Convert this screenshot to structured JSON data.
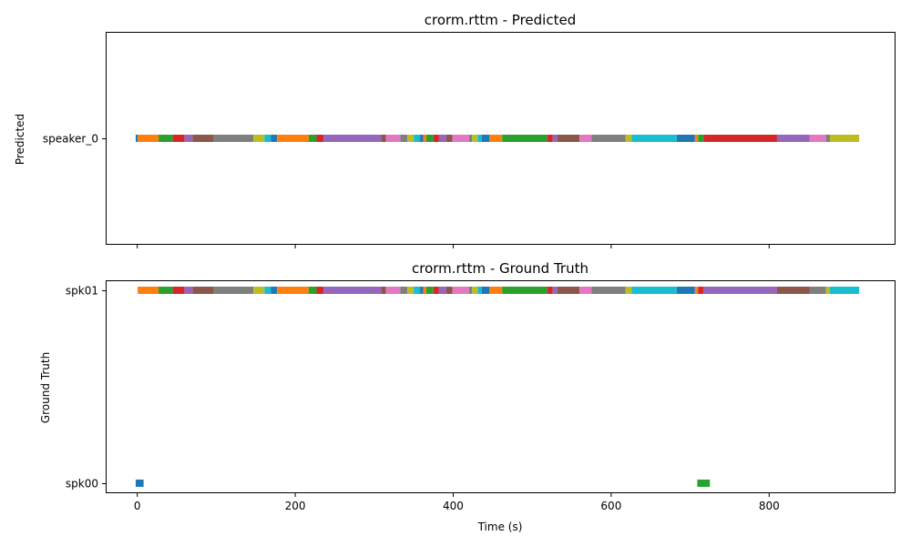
{
  "chart_data": [
    {
      "type": "timeline",
      "title": "crorm.rttm - Predicted",
      "xlabel": "",
      "ylabel": "Predicted",
      "xlim": [
        -40,
        960
      ],
      "xticks": [
        0,
        200,
        400,
        600,
        800
      ],
      "xtick_labels_visible": false,
      "speakers": [
        "speaker_0"
      ],
      "segments": [
        {
          "speaker": "speaker_0",
          "start": -2,
          "end": 0.5,
          "color": "#1f77b4"
        },
        {
          "speaker": "speaker_0",
          "start": 0.5,
          "end": 27,
          "color": "#ff7f0e"
        },
        {
          "speaker": "speaker_0",
          "start": 27,
          "end": 45,
          "color": "#2ca02c"
        },
        {
          "speaker": "speaker_0",
          "start": 45,
          "end": 60,
          "color": "#d62728"
        },
        {
          "speaker": "speaker_0",
          "start": 60,
          "end": 70,
          "color": "#9467bd"
        },
        {
          "speaker": "speaker_0",
          "start": 70,
          "end": 97,
          "color": "#8c564b"
        },
        {
          "speaker": "speaker_0",
          "start": 97,
          "end": 147,
          "color": "#7f7f7f"
        },
        {
          "speaker": "speaker_0",
          "start": 147,
          "end": 161,
          "color": "#bcbd22"
        },
        {
          "speaker": "speaker_0",
          "start": 161,
          "end": 169,
          "color": "#17becf"
        },
        {
          "speaker": "speaker_0",
          "start": 169,
          "end": 177,
          "color": "#1f77b4"
        },
        {
          "speaker": "speaker_0",
          "start": 177,
          "end": 217,
          "color": "#ff7f0e"
        },
        {
          "speaker": "speaker_0",
          "start": 217,
          "end": 227,
          "color": "#2ca02c"
        },
        {
          "speaker": "speaker_0",
          "start": 227,
          "end": 236,
          "color": "#d62728"
        },
        {
          "speaker": "speaker_0",
          "start": 236,
          "end": 309,
          "color": "#9467bd"
        },
        {
          "speaker": "speaker_0",
          "start": 309,
          "end": 315,
          "color": "#8c564b"
        },
        {
          "speaker": "speaker_0",
          "start": 315,
          "end": 333,
          "color": "#e377c2"
        },
        {
          "speaker": "speaker_0",
          "start": 333,
          "end": 342,
          "color": "#7f7f7f"
        },
        {
          "speaker": "speaker_0",
          "start": 342,
          "end": 350,
          "color": "#bcbd22"
        },
        {
          "speaker": "speaker_0",
          "start": 350,
          "end": 358,
          "color": "#17becf"
        },
        {
          "speaker": "speaker_0",
          "start": 358,
          "end": 362,
          "color": "#1f77b4"
        },
        {
          "speaker": "speaker_0",
          "start": 362,
          "end": 366,
          "color": "#ff7f0e"
        },
        {
          "speaker": "speaker_0",
          "start": 366,
          "end": 375,
          "color": "#2ca02c"
        },
        {
          "speaker": "speaker_0",
          "start": 375,
          "end": 382,
          "color": "#d62728"
        },
        {
          "speaker": "speaker_0",
          "start": 382,
          "end": 391,
          "color": "#9467bd"
        },
        {
          "speaker": "speaker_0",
          "start": 391,
          "end": 399,
          "color": "#8c564b"
        },
        {
          "speaker": "speaker_0",
          "start": 399,
          "end": 420,
          "color": "#e377c2"
        },
        {
          "speaker": "speaker_0",
          "start": 420,
          "end": 424,
          "color": "#7f7f7f"
        },
        {
          "speaker": "speaker_0",
          "start": 424,
          "end": 431,
          "color": "#bcbd22"
        },
        {
          "speaker": "speaker_0",
          "start": 431,
          "end": 436,
          "color": "#17becf"
        },
        {
          "speaker": "speaker_0",
          "start": 436,
          "end": 446,
          "color": "#1f77b4"
        },
        {
          "speaker": "speaker_0",
          "start": 446,
          "end": 462,
          "color": "#ff7f0e"
        },
        {
          "speaker": "speaker_0",
          "start": 462,
          "end": 519,
          "color": "#2ca02c"
        },
        {
          "speaker": "speaker_0",
          "start": 519,
          "end": 526,
          "color": "#d62728"
        },
        {
          "speaker": "speaker_0",
          "start": 526,
          "end": 532,
          "color": "#9467bd"
        },
        {
          "speaker": "speaker_0",
          "start": 532,
          "end": 560,
          "color": "#8c564b"
        },
        {
          "speaker": "speaker_0",
          "start": 560,
          "end": 575,
          "color": "#e377c2"
        },
        {
          "speaker": "speaker_0",
          "start": 575,
          "end": 618,
          "color": "#7f7f7f"
        },
        {
          "speaker": "speaker_0",
          "start": 618,
          "end": 626,
          "color": "#bcbd22"
        },
        {
          "speaker": "speaker_0",
          "start": 626,
          "end": 683,
          "color": "#17becf"
        },
        {
          "speaker": "speaker_0",
          "start": 683,
          "end": 706,
          "color": "#1f77b4"
        },
        {
          "speaker": "speaker_0",
          "start": 706,
          "end": 710,
          "color": "#ff7f0e"
        },
        {
          "speaker": "speaker_0",
          "start": 710,
          "end": 717,
          "color": "#2ca02c"
        },
        {
          "speaker": "speaker_0",
          "start": 717,
          "end": 810,
          "color": "#d62728"
        },
        {
          "speaker": "speaker_0",
          "start": 810,
          "end": 851,
          "color": "#9467bd"
        },
        {
          "speaker": "speaker_0",
          "start": 851,
          "end": 872,
          "color": "#e377c2"
        },
        {
          "speaker": "speaker_0",
          "start": 872,
          "end": 877,
          "color": "#7f7f7f"
        },
        {
          "speaker": "speaker_0",
          "start": 877,
          "end": 914,
          "color": "#bcbd22"
        }
      ]
    },
    {
      "type": "timeline",
      "title": "crorm.rttm - Ground Truth",
      "xlabel": "Time (s)",
      "ylabel": "Ground Truth",
      "xlim": [
        -40,
        960
      ],
      "xticks": [
        0,
        200,
        400,
        600,
        800
      ],
      "xtick_labels_visible": true,
      "speakers": [
        "spk00",
        "spk01"
      ],
      "segments": [
        {
          "speaker": "spk00",
          "start": -2,
          "end": 8,
          "color": "#1f77b4"
        },
        {
          "speaker": "spk00",
          "start": 709,
          "end": 725,
          "color": "#2ca02c"
        },
        {
          "speaker": "spk01",
          "start": 0.5,
          "end": 27,
          "color": "#ff7f0e"
        },
        {
          "speaker": "spk01",
          "start": 27,
          "end": 45,
          "color": "#2ca02c"
        },
        {
          "speaker": "spk01",
          "start": 45,
          "end": 60,
          "color": "#d62728"
        },
        {
          "speaker": "spk01",
          "start": 60,
          "end": 70,
          "color": "#9467bd"
        },
        {
          "speaker": "spk01",
          "start": 70,
          "end": 97,
          "color": "#8c564b"
        },
        {
          "speaker": "spk01",
          "start": 97,
          "end": 147,
          "color": "#7f7f7f"
        },
        {
          "speaker": "spk01",
          "start": 147,
          "end": 161,
          "color": "#bcbd22"
        },
        {
          "speaker": "spk01",
          "start": 161,
          "end": 169,
          "color": "#17becf"
        },
        {
          "speaker": "spk01",
          "start": 169,
          "end": 177,
          "color": "#1f77b4"
        },
        {
          "speaker": "spk01",
          "start": 177,
          "end": 217,
          "color": "#ff7f0e"
        },
        {
          "speaker": "spk01",
          "start": 217,
          "end": 227,
          "color": "#2ca02c"
        },
        {
          "speaker": "spk01",
          "start": 227,
          "end": 236,
          "color": "#d62728"
        },
        {
          "speaker": "spk01",
          "start": 236,
          "end": 309,
          "color": "#9467bd"
        },
        {
          "speaker": "spk01",
          "start": 309,
          "end": 315,
          "color": "#8c564b"
        },
        {
          "speaker": "spk01",
          "start": 315,
          "end": 333,
          "color": "#e377c2"
        },
        {
          "speaker": "spk01",
          "start": 333,
          "end": 342,
          "color": "#7f7f7f"
        },
        {
          "speaker": "spk01",
          "start": 342,
          "end": 350,
          "color": "#bcbd22"
        },
        {
          "speaker": "spk01",
          "start": 350,
          "end": 358,
          "color": "#17becf"
        },
        {
          "speaker": "spk01",
          "start": 358,
          "end": 362,
          "color": "#1f77b4"
        },
        {
          "speaker": "spk01",
          "start": 362,
          "end": 366,
          "color": "#ff7f0e"
        },
        {
          "speaker": "spk01",
          "start": 366,
          "end": 375,
          "color": "#2ca02c"
        },
        {
          "speaker": "spk01",
          "start": 375,
          "end": 382,
          "color": "#d62728"
        },
        {
          "speaker": "spk01",
          "start": 382,
          "end": 391,
          "color": "#9467bd"
        },
        {
          "speaker": "spk01",
          "start": 391,
          "end": 399,
          "color": "#8c564b"
        },
        {
          "speaker": "spk01",
          "start": 399,
          "end": 420,
          "color": "#e377c2"
        },
        {
          "speaker": "spk01",
          "start": 420,
          "end": 424,
          "color": "#7f7f7f"
        },
        {
          "speaker": "spk01",
          "start": 424,
          "end": 431,
          "color": "#bcbd22"
        },
        {
          "speaker": "spk01",
          "start": 431,
          "end": 436,
          "color": "#17becf"
        },
        {
          "speaker": "spk01",
          "start": 436,
          "end": 446,
          "color": "#1f77b4"
        },
        {
          "speaker": "spk01",
          "start": 446,
          "end": 462,
          "color": "#ff7f0e"
        },
        {
          "speaker": "spk01",
          "start": 462,
          "end": 519,
          "color": "#2ca02c"
        },
        {
          "speaker": "spk01",
          "start": 519,
          "end": 526,
          "color": "#d62728"
        },
        {
          "speaker": "spk01",
          "start": 526,
          "end": 532,
          "color": "#9467bd"
        },
        {
          "speaker": "spk01",
          "start": 532,
          "end": 560,
          "color": "#8c564b"
        },
        {
          "speaker": "spk01",
          "start": 560,
          "end": 575,
          "color": "#e377c2"
        },
        {
          "speaker": "spk01",
          "start": 575,
          "end": 618,
          "color": "#7f7f7f"
        },
        {
          "speaker": "spk01",
          "start": 618,
          "end": 626,
          "color": "#bcbd22"
        },
        {
          "speaker": "spk01",
          "start": 626,
          "end": 683,
          "color": "#17becf"
        },
        {
          "speaker": "spk01",
          "start": 683,
          "end": 706,
          "color": "#1f77b4"
        },
        {
          "speaker": "spk01",
          "start": 706,
          "end": 710,
          "color": "#ff7f0e"
        },
        {
          "speaker": "spk01",
          "start": 710,
          "end": 717,
          "color": "#d62728"
        },
        {
          "speaker": "spk01",
          "start": 717,
          "end": 810,
          "color": "#9467bd"
        },
        {
          "speaker": "spk01",
          "start": 810,
          "end": 851,
          "color": "#8c564b"
        },
        {
          "speaker": "spk01",
          "start": 851,
          "end": 872,
          "color": "#7f7f7f"
        },
        {
          "speaker": "spk01",
          "start": 872,
          "end": 877,
          "color": "#bcbd22"
        },
        {
          "speaker": "spk01",
          "start": 877,
          "end": 914,
          "color": "#17becf"
        }
      ]
    }
  ]
}
